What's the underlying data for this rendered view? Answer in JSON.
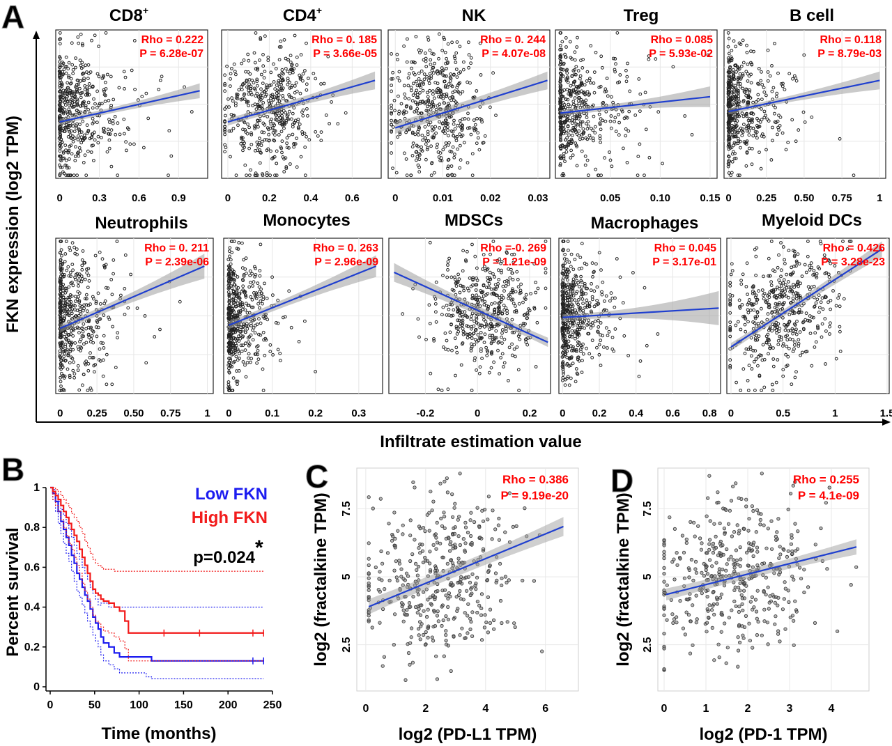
{
  "figure": {
    "panel_A": {
      "letter": "A",
      "ylabel": "FKN expression (log2 TPM)",
      "xlabel": "Infiltrate estimation value"
    },
    "panel_B": {
      "letter": "B"
    },
    "panel_C": {
      "letter": "C"
    },
    "panel_D": {
      "letter": "D"
    }
  },
  "chart_data": [
    {
      "id": "cd8",
      "type": "scatter",
      "title": "CD8",
      "title_sup": "+",
      "stat": {
        "rho": "Rho = 0.222",
        "p": "P = 6.28e-07"
      },
      "xlim": [
        -0.03,
        1.12
      ],
      "xticks": [
        0,
        0.3,
        0.6,
        0.9
      ],
      "xtick_labels": [
        "0",
        "0.3",
        "0.6",
        "0.9"
      ],
      "ylim": [
        0,
        1
      ],
      "trend": {
        "x": [
          0,
          1.06
        ],
        "y": [
          0.38,
          0.59
        ]
      },
      "ci_halfwidth": [
        0.02,
        0.05
      ],
      "cluster": {
        "xmode": "exp",
        "xscale": 0.18,
        "xcap": 1.0,
        "ymean": 0.45,
        "ysd": 0.21,
        "n": 480,
        "edge_frac": 0.18,
        "seed": 11
      }
    },
    {
      "id": "cd4",
      "type": "scatter",
      "title": "CD4",
      "title_sup": "+",
      "stat": {
        "rho": "Rho = 0. 185",
        "p": "P = 3.66e-05"
      },
      "xlim": [
        -0.03,
        0.74
      ],
      "xticks": [
        0,
        0.2,
        0.4,
        0.6
      ],
      "xtick_labels": [
        "0",
        "0.2",
        "0.4",
        "0.6"
      ],
      "ylim": [
        0,
        1
      ],
      "trend": {
        "x": [
          0,
          0.71
        ],
        "y": [
          0.38,
          0.66
        ]
      },
      "ci_halfwidth": [
        0.025,
        0.06
      ],
      "cluster": {
        "xmode": "norm",
        "xmean": 0.2,
        "xsd": 0.12,
        "ymean": 0.45,
        "ysd": 0.21,
        "n": 480,
        "edge_frac": 0.05,
        "seed": 23
      }
    },
    {
      "id": "nk",
      "type": "scatter",
      "title": "NK",
      "stat": {
        "rho": "Rho = 0. 244",
        "p": "P = 4.07e-08"
      },
      "xlim": [
        -0.0015,
        0.0325
      ],
      "xticks": [
        0,
        0.01,
        0.02,
        0.03
      ],
      "xtick_labels": [
        "0",
        "0.01",
        "0.02",
        "0.03"
      ],
      "ylim": [
        0,
        1
      ],
      "trend": {
        "x": [
          0,
          0.032
        ],
        "y": [
          0.34,
          0.66
        ]
      },
      "ci_halfwidth": [
        0.04,
        0.06
      ],
      "cluster": {
        "xmode": "norm",
        "xmean": 0.009,
        "xsd": 0.005,
        "ymean": 0.47,
        "ysd": 0.21,
        "n": 480,
        "edge_frac": 0.0,
        "seed": 37
      }
    },
    {
      "id": "treg",
      "type": "scatter",
      "title": "Treg",
      "stat": {
        "rho": "Rho = 0.085",
        "p": "P = 5.93e-02"
      },
      "xlim": [
        -0.005,
        0.157
      ],
      "xticks": [
        0.05,
        0.1,
        0.15
      ],
      "xtick_labels": [
        "0.05",
        "0.10",
        "0.15"
      ],
      "ylim": [
        0,
        1
      ],
      "trend": {
        "x": [
          0,
          0.15
        ],
        "y": [
          0.44,
          0.55
        ]
      },
      "ci_halfwidth": [
        0.02,
        0.07
      ],
      "cluster": {
        "xmode": "exp",
        "xscale": 0.025,
        "xcap": 0.15,
        "ymean": 0.47,
        "ysd": 0.21,
        "n": 480,
        "edge_frac": 0.2,
        "seed": 41
      }
    },
    {
      "id": "bcell",
      "type": "scatter",
      "title": "B cell",
      "stat": {
        "rho": "Rho = 0.118",
        "p": "P = 8.79e-03"
      },
      "xlim": [
        -0.03,
        1.04
      ],
      "xticks": [
        0,
        0.25,
        0.5,
        0.75,
        1
      ],
      "xtick_labels": [
        "0",
        "0.25",
        "0.50",
        "0.75",
        "1"
      ],
      "ylim": [
        0,
        1
      ],
      "trend": {
        "x": [
          0,
          1
        ],
        "y": [
          0.45,
          0.66
        ]
      },
      "ci_halfwidth": [
        0.02,
        0.06
      ],
      "cluster": {
        "xmode": "exp",
        "xscale": 0.12,
        "xcap": 0.95,
        "ymean": 0.5,
        "ysd": 0.21,
        "n": 480,
        "edge_frac": 0.2,
        "seed": 53
      }
    },
    {
      "id": "neut",
      "type": "scatter",
      "title": "Neutrophils",
      "stat": {
        "rho": "Rho = 0. 211",
        "p": "P = 2.39e-06"
      },
      "xlim": [
        -0.03,
        1.04
      ],
      "xticks": [
        0,
        0.25,
        0.5,
        0.75,
        1
      ],
      "xtick_labels": [
        "0",
        "0.25",
        "0.50",
        "0.75",
        "1"
      ],
      "ylim": [
        0,
        1
      ],
      "trend": {
        "x": [
          0,
          0.98
        ],
        "y": [
          0.42,
          0.82
        ]
      },
      "ci_halfwidth": [
        0.025,
        0.08
      ],
      "cluster": {
        "xmode": "exp",
        "xscale": 0.13,
        "xcap": 1.0,
        "ymean": 0.48,
        "ysd": 0.21,
        "n": 480,
        "edge_frac": 0.15,
        "seed": 67
      }
    },
    {
      "id": "mono",
      "type": "scatter",
      "title": "Monocytes",
      "stat": {
        "rho": "Rho = 0. 263",
        "p": "P = 2.96e-09"
      },
      "xlim": [
        -0.012,
        0.355
      ],
      "xticks": [
        0,
        0.1,
        0.2,
        0.3
      ],
      "xtick_labels": [
        "0",
        "0.1",
        "0.2",
        "0.3"
      ],
      "ylim": [
        0,
        1
      ],
      "trend": {
        "x": [
          0,
          0.34
        ],
        "y": [
          0.44,
          0.82
        ]
      },
      "ci_halfwidth": [
        0.025,
        0.07
      ],
      "cluster": {
        "xmode": "exp",
        "xscale": 0.035,
        "xcap": 0.33,
        "ymean": 0.48,
        "ysd": 0.21,
        "n": 480,
        "edge_frac": 0.2,
        "seed": 71
      }
    },
    {
      "id": "mdsc",
      "type": "scatter",
      "title": "MDSCs",
      "stat": {
        "rho": "Rho =-0. 269",
        "p": "P = 1.21e-09"
      },
      "xlim": [
        -0.34,
        0.28
      ],
      "xticks": [
        -0.2,
        0,
        0.2
      ],
      "xtick_labels": [
        "-0.2",
        "0",
        "0.2"
      ],
      "ylim": [
        0,
        1
      ],
      "trend": {
        "x": [
          -0.32,
          0.27
        ],
        "y": [
          0.78,
          0.33
        ]
      },
      "ci_halfwidth": [
        0.06,
        0.03
      ],
      "cluster": {
        "xmode": "norm",
        "xmean": 0.03,
        "xsd": 0.1,
        "ymean": 0.52,
        "ysd": 0.19,
        "n": 480,
        "edge_frac": 0.0,
        "seed": 83
      }
    },
    {
      "id": "macro",
      "type": "scatter",
      "title": "Macrophages",
      "stat": {
        "rho": "Rho = 0.045",
        "p": "P = 3.17e-01"
      },
      "xlim": [
        -0.02,
        0.86
      ],
      "xticks": [
        0,
        0.2,
        0.4,
        0.6,
        0.8
      ],
      "xtick_labels": [
        "0",
        "0.2",
        "0.4",
        "0.6",
        "0.8"
      ],
      "ylim": [
        0,
        1
      ],
      "trend": {
        "x": [
          0,
          0.85
        ],
        "y": [
          0.49,
          0.55
        ]
      },
      "ci_halfwidth": [
        0.02,
        0.11
      ],
      "cluster": {
        "xmode": "exp",
        "xscale": 0.09,
        "xcap": 0.8,
        "ymean": 0.5,
        "ysd": 0.21,
        "n": 480,
        "edge_frac": 0.2,
        "seed": 97
      }
    },
    {
      "id": "mdc",
      "type": "scatter",
      "title": "Myeloid DCs",
      "stat": {
        "rho": "Rho = 0.426",
        "p": "P = 3.28e-23"
      },
      "xlim": [
        -0.04,
        1.52
      ],
      "xticks": [
        0,
        0.5,
        1,
        1.5
      ],
      "xtick_labels": [
        "0",
        "0.5",
        "1",
        "1.5"
      ],
      "ylim": [
        0,
        1
      ],
      "trend": {
        "x": [
          0,
          1.45
        ],
        "y": [
          0.3,
          0.93
        ]
      },
      "ci_halfwidth": [
        0.025,
        0.05
      ],
      "cluster": {
        "xmode": "norm",
        "xmean": 0.5,
        "xsd": 0.28,
        "ymean": 0.53,
        "ysd": 0.2,
        "n": 480,
        "edge_frac": 0.0,
        "seed": 101,
        "corr": 0.45
      }
    },
    {
      "id": "survival",
      "type": "line",
      "xlabel": "Time (months)",
      "ylabel": "Percent survival",
      "xlim": [
        0,
        250
      ],
      "ylim": [
        0,
        1
      ],
      "xticks": [
        0,
        50,
        100,
        150,
        200,
        250
      ],
      "yticks": [
        0,
        0.2,
        0.4,
        0.6,
        0.8,
        1
      ],
      "ytick_labels": [
        "0",
        "0.2",
        "0.4",
        "0.6",
        "0.8",
        "1"
      ],
      "legend": [
        {
          "name": "Low FKN",
          "color": "#1c1cf0"
        },
        {
          "name": "High FKN",
          "color": "#f21b1b"
        }
      ],
      "pvalue": "p=0.024",
      "pvalue_mark": "*",
      "series": [
        {
          "name": "Low FKN",
          "color": "#1c1cf0",
          "x": [
            0,
            3,
            6,
            9,
            12,
            15,
            18,
            21,
            24,
            27,
            30,
            33,
            36,
            39,
            42,
            45,
            48,
            51,
            54,
            57,
            60,
            66,
            72,
            78,
            84,
            90,
            96,
            102,
            108,
            114,
            240
          ],
          "y": [
            1,
            0.97,
            0.93,
            0.88,
            0.83,
            0.79,
            0.75,
            0.71,
            0.66,
            0.62,
            0.57,
            0.54,
            0.5,
            0.46,
            0.43,
            0.39,
            0.35,
            0.32,
            0.29,
            0.25,
            0.22,
            0.2,
            0.17,
            0.15,
            0.15,
            0.15,
            0.15,
            0.15,
            0.15,
            0.13,
            0.13
          ],
          "ci_upper": [
            1,
            0.99,
            0.97,
            0.93,
            0.89,
            0.86,
            0.82,
            0.79,
            0.75,
            0.71,
            0.67,
            0.64,
            0.6,
            0.57,
            0.54,
            0.5,
            0.47,
            0.44,
            0.41,
            0.42,
            0.42,
            0.4,
            0.4,
            0.4,
            0.4,
            0.4,
            0.4,
            0.4,
            0.4,
            0.4,
            0.4
          ],
          "ci_lower": [
            1,
            0.94,
            0.88,
            0.82,
            0.77,
            0.72,
            0.67,
            0.63,
            0.58,
            0.53,
            0.48,
            0.45,
            0.41,
            0.37,
            0.33,
            0.3,
            0.26,
            0.23,
            0.2,
            0.16,
            0.13,
            0.11,
            0.09,
            0.07,
            0.07,
            0.07,
            0.07,
            0.07,
            0.05,
            0.04,
            0.04
          ],
          "censor_x": [
            228,
            240
          ]
        },
        {
          "name": "High FKN",
          "color": "#f21b1b",
          "x": [
            0,
            3,
            6,
            9,
            12,
            15,
            18,
            21,
            24,
            27,
            30,
            33,
            36,
            39,
            42,
            45,
            48,
            51,
            54,
            57,
            60,
            66,
            72,
            78,
            84,
            88,
            96,
            114,
            240
          ],
          "y": [
            1,
            0.98,
            0.96,
            0.94,
            0.91,
            0.88,
            0.85,
            0.82,
            0.79,
            0.76,
            0.73,
            0.69,
            0.65,
            0.61,
            0.57,
            0.53,
            0.49,
            0.47,
            0.46,
            0.44,
            0.43,
            0.42,
            0.4,
            0.38,
            0.33,
            0.27,
            0.27,
            0.27,
            0.27
          ],
          "ci_upper": [
            1,
            1,
            0.99,
            0.98,
            0.96,
            0.94,
            0.92,
            0.9,
            0.87,
            0.85,
            0.83,
            0.8,
            0.77,
            0.73,
            0.7,
            0.67,
            0.64,
            0.62,
            0.61,
            0.6,
            0.59,
            0.59,
            0.58,
            0.58,
            0.58,
            0.58,
            0.58,
            0.58,
            0.58
          ],
          "ci_lower": [
            1,
            0.94,
            0.91,
            0.88,
            0.84,
            0.8,
            0.76,
            0.72,
            0.69,
            0.65,
            0.61,
            0.57,
            0.52,
            0.48,
            0.44,
            0.4,
            0.36,
            0.33,
            0.32,
            0.3,
            0.28,
            0.27,
            0.25,
            0.23,
            0.19,
            0.13,
            0.13,
            0.13,
            0.13
          ],
          "censor_x": [
            128,
            168,
            228,
            240
          ]
        }
      ]
    },
    {
      "id": "pdl1",
      "type": "scatter",
      "xlabel": "log2 (PD-L1 TPM)",
      "ylabel": "log2 (fractalkine TPM)",
      "stat": {
        "rho": "Rho = 0.386",
        "p": "P = 9.19e-20"
      },
      "xlim": [
        -0.3,
        7.1
      ],
      "ylim": [
        0.8,
        9.0
      ],
      "xticks": [
        0,
        2,
        4,
        6
      ],
      "xtick_labels": [
        "0",
        "2",
        "4",
        "6"
      ],
      "yticks": [
        2.5,
        5,
        7.5
      ],
      "ytick_labels": [
        "2.5",
        "5",
        "7.5"
      ],
      "trend": {
        "x": [
          0.1,
          6.6
        ],
        "y": [
          3.9,
          6.85
        ]
      },
      "ci_halfwidth": [
        0.28,
        0.35
      ],
      "cluster": {
        "xmode": "norm",
        "xmean": 2.3,
        "xsd": 1.3,
        "xmin": 0.1,
        "xmax": 6.8,
        "ymean": 5.0,
        "ysd": 1.45,
        "ymin": 1.2,
        "ymax": 8.8,
        "n": 420,
        "seed": 131,
        "corr": 0.38
      }
    },
    {
      "id": "pd1",
      "type": "scatter",
      "xlabel": "log2 (PD-1 TPM)",
      "ylabel": "log2 (fractalkine TPM)",
      "stat": {
        "rho": "Rho = 0.255",
        "p": "P = 4.1e-09"
      },
      "xlim": [
        -0.15,
        4.9
      ],
      "ylim": [
        0.8,
        9.0
      ],
      "xticks": [
        0,
        1,
        2,
        3,
        4
      ],
      "xtick_labels": [
        "0",
        "1",
        "2",
        "3",
        "4"
      ],
      "yticks": [
        2.5,
        5,
        7.5
      ],
      "ytick_labels": [
        "2.5",
        "5",
        "7.5"
      ],
      "trend": {
        "x": [
          0.05,
          4.6
        ],
        "y": [
          4.35,
          6.1
        ]
      },
      "ci_halfwidth": [
        0.22,
        0.28
      ],
      "cluster": {
        "xmode": "norm",
        "xmean": 1.6,
        "xsd": 1.0,
        "xmin": 0.0,
        "xmax": 4.7,
        "ymean": 5.0,
        "ysd": 1.45,
        "ymin": 1.2,
        "ymax": 8.8,
        "n": 420,
        "seed": 149,
        "corr": 0.25
      }
    }
  ]
}
